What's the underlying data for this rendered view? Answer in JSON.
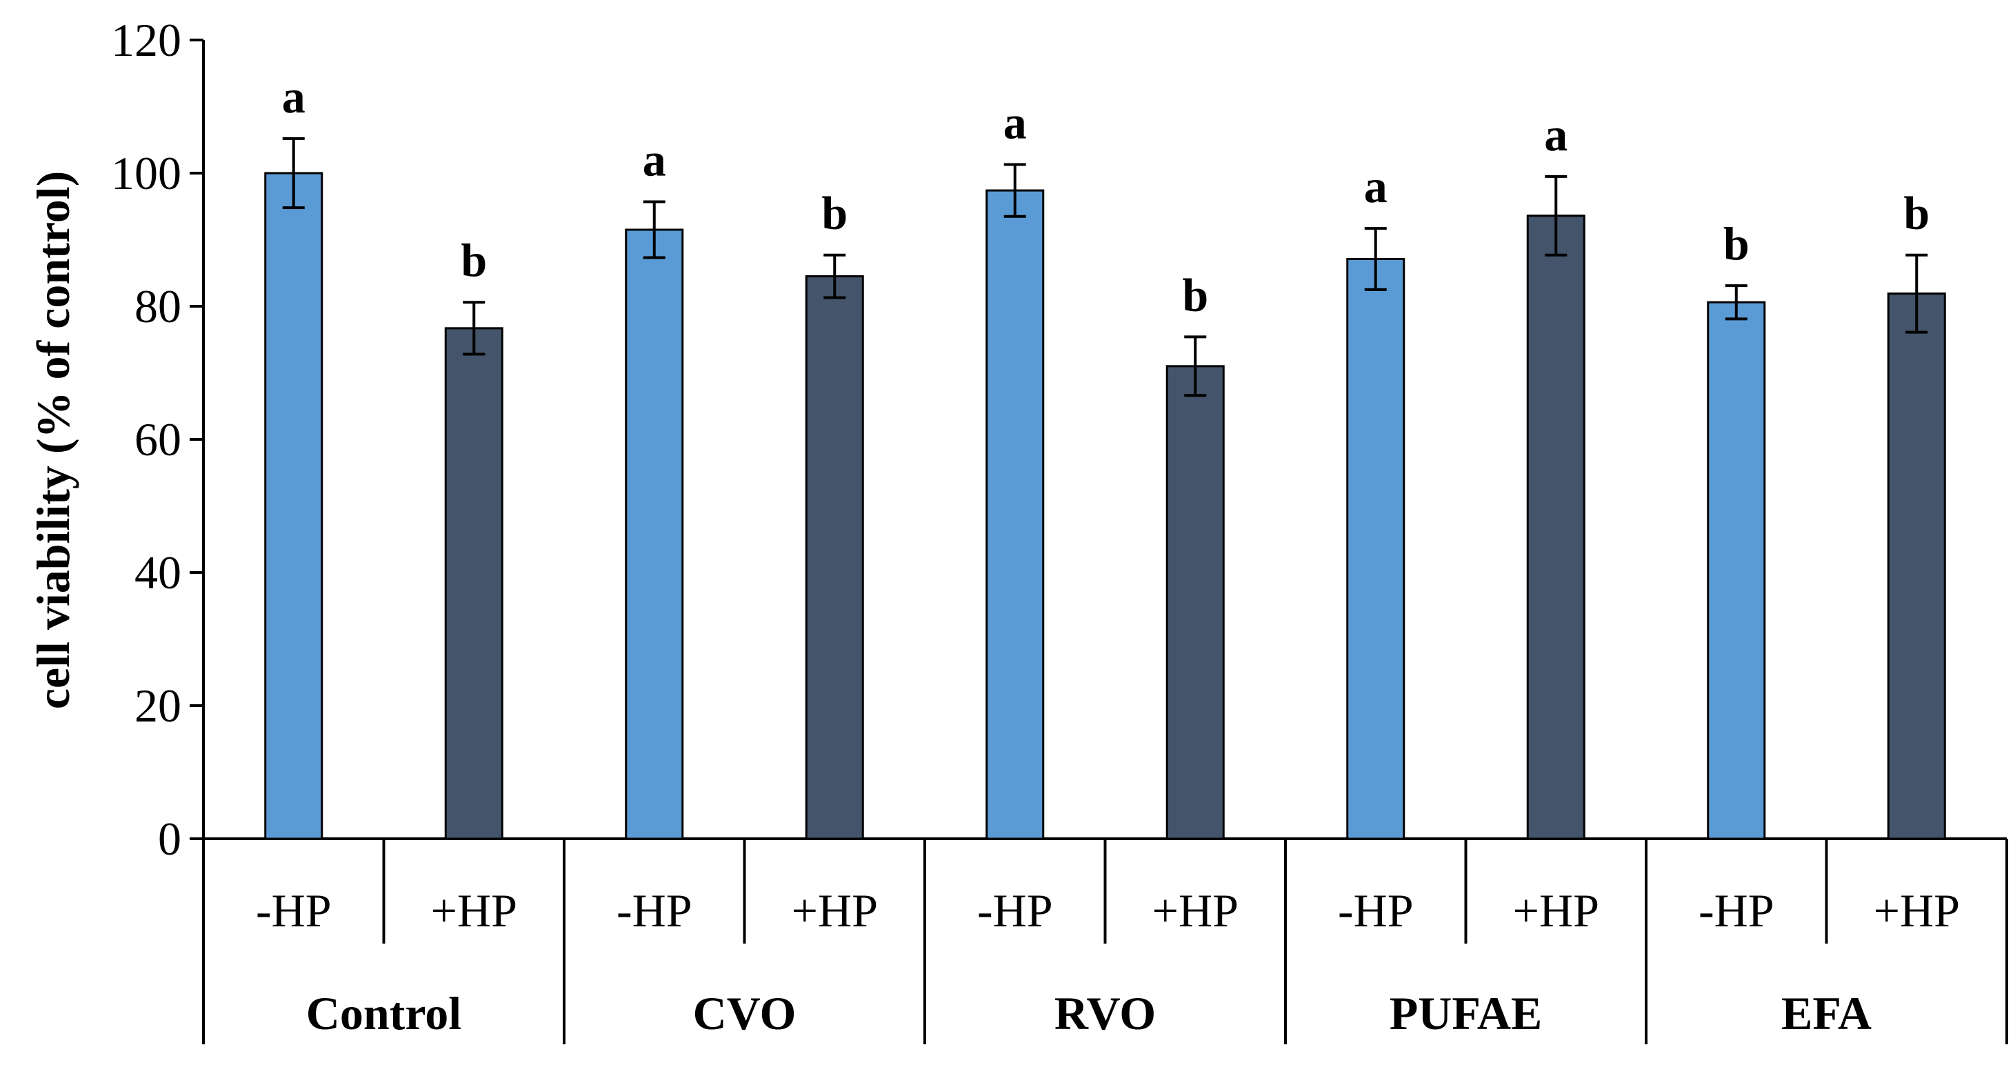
{
  "chart_data": {
    "type": "bar",
    "title": "",
    "ylabel": "cell viability  (% of control)",
    "xlabel": "",
    "ylim": [
      0,
      120
    ],
    "yticks": [
      0,
      20,
      40,
      60,
      80,
      100,
      120
    ],
    "groups": [
      "Control",
      "CVO",
      "RVO",
      "PUFAE",
      "EFA"
    ],
    "categories": [
      "-HP",
      "+HP"
    ],
    "bars": [
      {
        "group": "Control",
        "category": "-HP",
        "value": 100,
        "error": 5.2,
        "sig": "a"
      },
      {
        "group": "Control",
        "category": "+HP",
        "value": 76.7,
        "error": 3.9,
        "sig": "b"
      },
      {
        "group": "CVO",
        "category": "-HP",
        "value": 91.5,
        "error": 4.2,
        "sig": "a"
      },
      {
        "group": "CVO",
        "category": "+HP",
        "value": 84.5,
        "error": 3.2,
        "sig": "b"
      },
      {
        "group": "RVO",
        "category": "-HP",
        "value": 97.4,
        "error": 3.9,
        "sig": "a"
      },
      {
        "group": "RVO",
        "category": "+HP",
        "value": 71.0,
        "error": 4.4,
        "sig": "b"
      },
      {
        "group": "PUFAE",
        "category": "-HP",
        "value": 87.1,
        "error": 4.6,
        "sig": "a"
      },
      {
        "group": "PUFAE",
        "category": "+HP",
        "value": 93.6,
        "error": 5.9,
        "sig": "a"
      },
      {
        "group": "EFA",
        "category": "-HP",
        "value": 80.6,
        "error": 2.5,
        "sig": "b"
      },
      {
        "group": "EFA",
        "category": "+HP",
        "value": 81.9,
        "error": 5.8,
        "sig": "b"
      }
    ],
    "colors": {
      "-HP": "#5b9bd5",
      "+HP": "#44546a",
      "axis": "#000000"
    }
  }
}
